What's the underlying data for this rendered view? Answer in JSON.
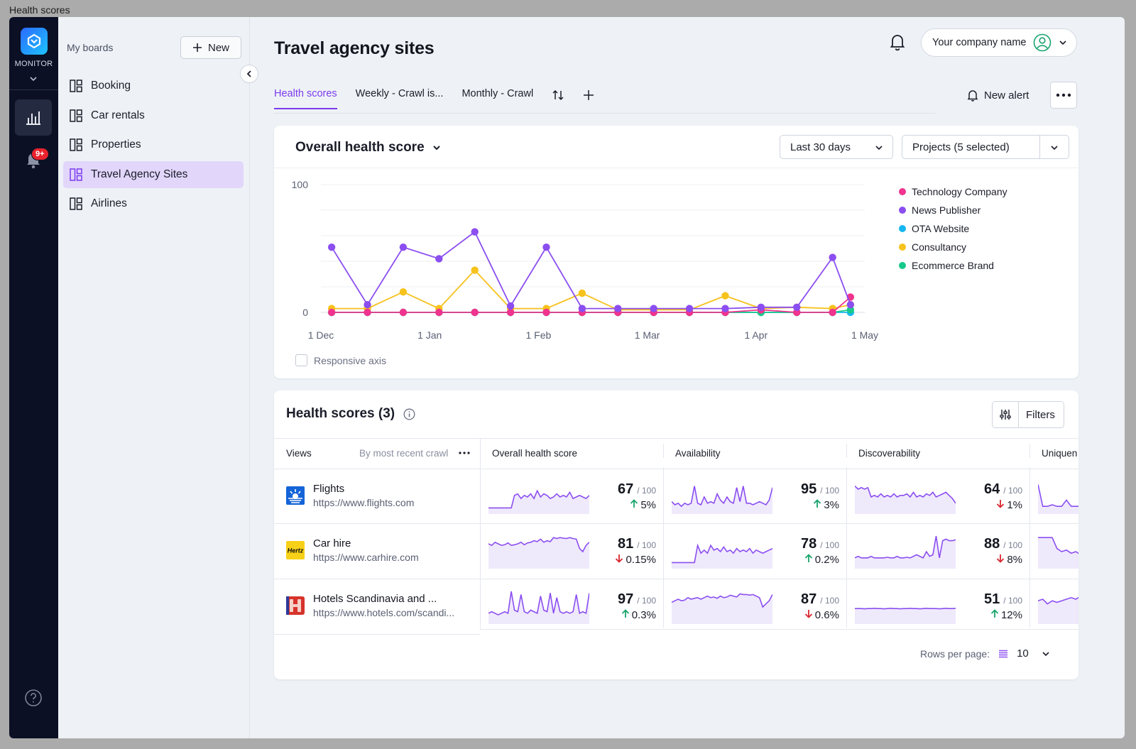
{
  "window_title": "Health scores",
  "rail": {
    "product": "MONITOR",
    "badge": "9+"
  },
  "boards": {
    "heading": "My boards",
    "new_label": "New",
    "items": [
      "Booking",
      "Car rentals",
      "Properties",
      "Travel Agency Sites",
      "Airlines"
    ],
    "active_index": 3
  },
  "header": {
    "title": "Travel agency sites",
    "company": "Your company name"
  },
  "tabs": [
    "Health scores",
    "Weekly - Crawl is...",
    "Monthly - Crawl"
  ],
  "new_alert": "New alert",
  "chart_card": {
    "title": "Overall health score",
    "range": "Last 30 days",
    "projects": "Projects (5 selected)",
    "responsive_axis": "Responsive axis"
  },
  "chart_data": {
    "type": "line",
    "x_labels": [
      "1 Dec",
      "1 Jan",
      "1 Feb",
      "1 Mar",
      "1 Apr",
      "1 May"
    ],
    "ylim": [
      0,
      100
    ],
    "y_ticks": [
      "100",
      "0"
    ],
    "legend_placement": "right",
    "x": [
      "2023-12-04",
      "2023-12-14",
      "2023-12-24",
      "2024-01-03",
      "2024-01-13",
      "2024-01-23",
      "2024-02-02",
      "2024-02-12",
      "2024-02-22",
      "2024-03-03",
      "2024-03-13",
      "2024-03-23",
      "2024-04-02",
      "2024-04-12",
      "2024-04-22",
      "2024-04-27"
    ],
    "series": [
      {
        "name": "Technology Company",
        "color": "#f0338e",
        "values": [
          0,
          0,
          0,
          0,
          0,
          0,
          0,
          0,
          0,
          0,
          0,
          0,
          2,
          0,
          0,
          12
        ]
      },
      {
        "name": "News Publisher",
        "color": "#8b4ef0",
        "values": [
          51,
          6,
          51,
          42,
          63,
          5,
          51,
          3,
          3,
          3,
          3,
          3,
          4,
          4,
          43,
          6
        ]
      },
      {
        "name": "OTA Website",
        "color": "#16b7f0",
        "values": [
          0,
          0,
          0,
          0,
          0,
          0,
          0,
          0,
          0,
          0,
          0,
          0,
          0,
          0,
          0,
          0
        ]
      },
      {
        "name": "Consultancy",
        "color": "#f6c21c",
        "values": [
          3,
          3,
          16,
          3,
          33,
          3,
          3,
          15,
          2,
          2,
          2,
          13,
          3,
          4,
          3,
          6
        ]
      },
      {
        "name": "Ecommerce Brand",
        "color": "#17c98a",
        "values": [
          0,
          0,
          0,
          0,
          0,
          0,
          0,
          0,
          0,
          0,
          0,
          0,
          0,
          0,
          0,
          2
        ]
      }
    ]
  },
  "table": {
    "title": "Health scores (3)",
    "filters_label": "Filters",
    "views_header": "Views",
    "sort_label": "By most recent crawl",
    "columns": [
      "Overall health score",
      "Availability",
      "Discoverability",
      "Uniquen"
    ],
    "denominator": "/ 100",
    "rows": [
      {
        "name": "Flights",
        "url": "https://www.flights.com",
        "metrics": [
          {
            "score": "67",
            "delta": "5%",
            "dir": "up"
          },
          {
            "score": "95",
            "delta": "3%",
            "dir": "up"
          },
          {
            "score": "64",
            "delta": "1%",
            "dir": "down"
          }
        ]
      },
      {
        "name": "Car hire",
        "url": "https://www.carhire.com",
        "metrics": [
          {
            "score": "81",
            "delta": "0.15%",
            "dir": "down"
          },
          {
            "score": "78",
            "delta": "0.2%",
            "dir": "up"
          },
          {
            "score": "88",
            "delta": "8%",
            "dir": "down"
          }
        ]
      },
      {
        "name": "Hotels Scandinavia and ...",
        "url": "https://www.hotels.com/scandi...",
        "metrics": [
          {
            "score": "97",
            "delta": "0.3%",
            "dir": "up"
          },
          {
            "score": "87",
            "delta": "0.6%",
            "dir": "down"
          },
          {
            "score": "51",
            "delta": "12%",
            "dir": "up"
          }
        ]
      }
    ],
    "rows_per_page_label": "Rows per page:",
    "rows_per_page": "10"
  }
}
